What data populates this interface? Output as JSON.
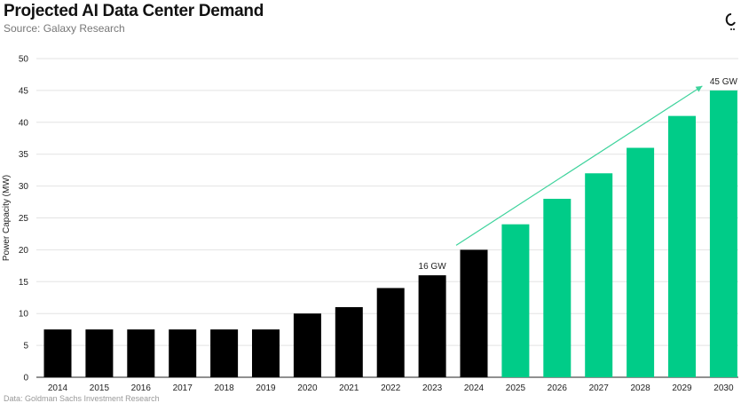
{
  "header": {
    "title": "Projected AI Data Center Demand",
    "subtitle": "Source: Galaxy Research"
  },
  "footer": {
    "note": "Data: Goldman Sachs Investment Research"
  },
  "colors": {
    "historical": "#000000",
    "projected": "#00CC88",
    "trend_arrow": "#3ED39C",
    "grid": "#e3e3e3"
  },
  "chart_data": {
    "type": "bar",
    "title": "Projected AI Data Center Demand",
    "xlabel": "",
    "ylabel": "Power Capacity (MW)",
    "ylim": [
      0,
      50
    ],
    "yticks": [
      0,
      5,
      10,
      15,
      20,
      25,
      30,
      35,
      40,
      45,
      50
    ],
    "grid": true,
    "categories": [
      "2014",
      "2015",
      "2016",
      "2017",
      "2018",
      "2019",
      "2020",
      "2021",
      "2022",
      "2023",
      "2024",
      "2025",
      "2026",
      "2027",
      "2028",
      "2029",
      "2030"
    ],
    "values": [
      7.5,
      7.5,
      7.5,
      7.5,
      7.5,
      7.5,
      10,
      11,
      14,
      16,
      20,
      24,
      28,
      32,
      36,
      41,
      45
    ],
    "projected_from": "2025",
    "annotations": [
      {
        "category": "2023",
        "text": "16 GW"
      },
      {
        "category": "2030",
        "text": "45 GW"
      }
    ],
    "trend_arrow": {
      "from_category": "2024",
      "from_value": 20,
      "to_category": "2030",
      "to_value": 45
    }
  }
}
